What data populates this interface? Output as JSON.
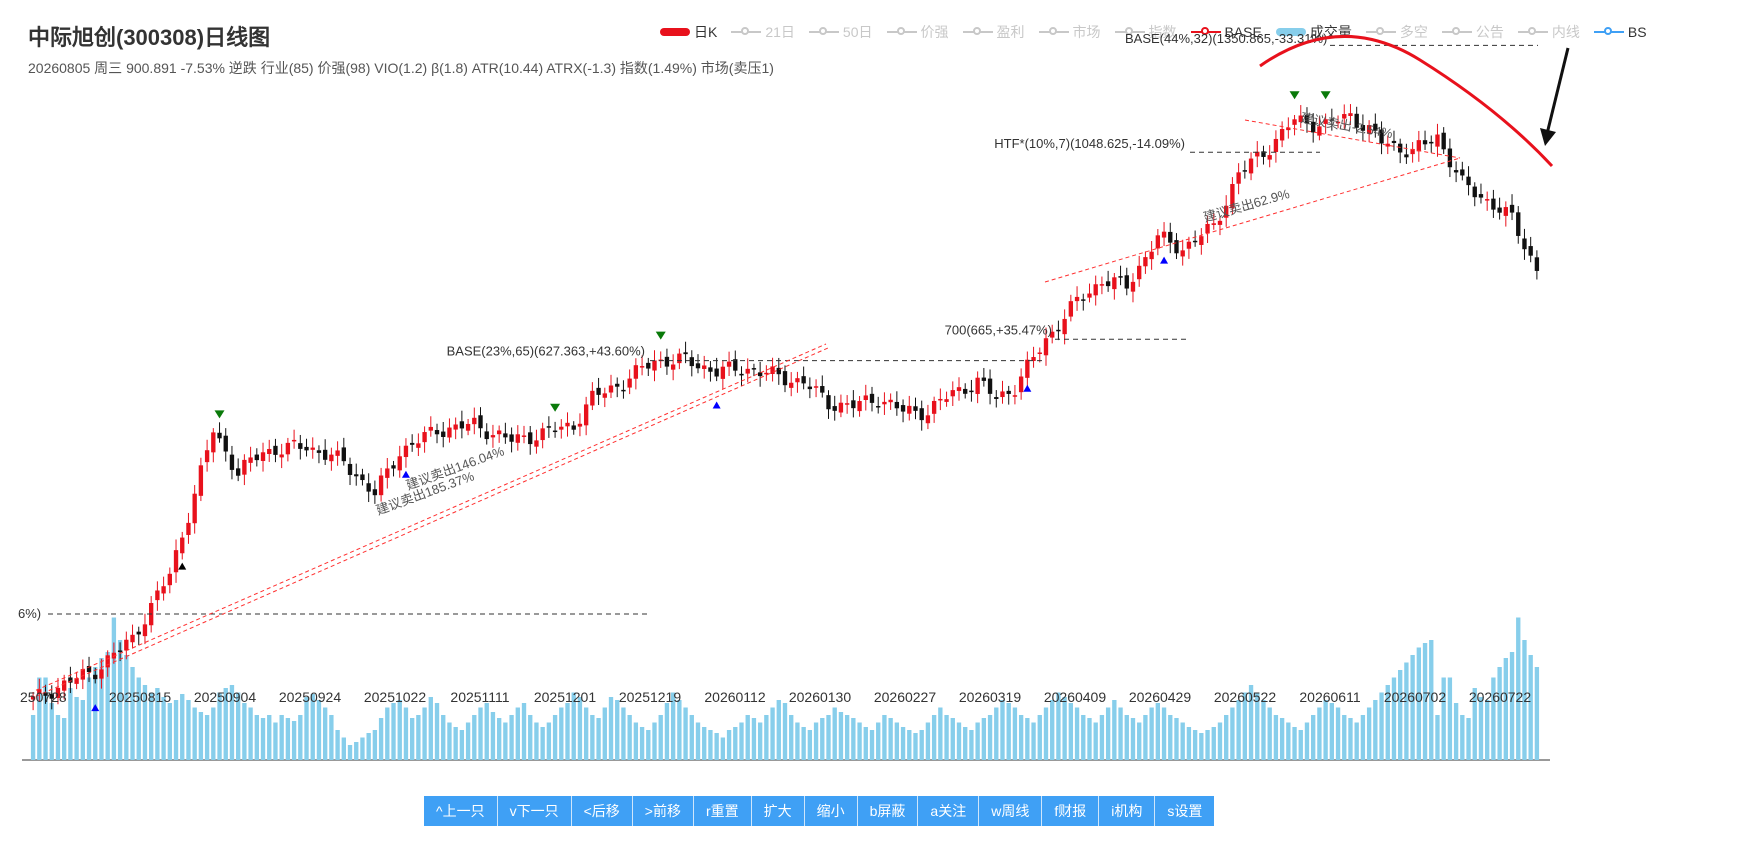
{
  "header": {
    "title": "中际旭创(300308)日线图",
    "subtitle": "20260805 周三 900.891 -7.53% 逆跌 行业(85) 价强(98) VIO(1.2) β(1.8) ATR(10.44) ATRX(-1.3) 指数(1.49%) 市场(卖压1)"
  },
  "legend": [
    {
      "label": "日K",
      "color": "#e8111c",
      "active": true,
      "kind": "bar"
    },
    {
      "label": "21日",
      "color": "#c8c8c8",
      "active": false,
      "kind": "line"
    },
    {
      "label": "50日",
      "color": "#c8c8c8",
      "active": false,
      "kind": "line"
    },
    {
      "label": "价强",
      "color": "#c8c8c8",
      "active": false,
      "kind": "line"
    },
    {
      "label": "盈利",
      "color": "#c8c8c8",
      "active": false,
      "kind": "line"
    },
    {
      "label": "市场",
      "color": "#c8c8c8",
      "active": false,
      "kind": "line"
    },
    {
      "label": "指数",
      "color": "#c8c8c8",
      "active": false,
      "kind": "line"
    },
    {
      "label": "BASE",
      "color": "#e8111c",
      "active": true,
      "kind": "line"
    },
    {
      "label": "成交量",
      "color": "#87ceeb",
      "active": true,
      "kind": "bar"
    },
    {
      "label": "多空",
      "color": "#c8c8c8",
      "active": false,
      "kind": "line"
    },
    {
      "label": "公告",
      "color": "#c8c8c8",
      "active": false,
      "kind": "line"
    },
    {
      "label": "内线",
      "color": "#c8c8c8",
      "active": false,
      "kind": "line"
    },
    {
      "label": "BS",
      "color": "#3fa0f5",
      "active": true,
      "kind": "line"
    }
  ],
  "toolbar": [
    {
      "label": "^上一只",
      "name": "prev-stock-button"
    },
    {
      "label": "v下一只",
      "name": "next-stock-button"
    },
    {
      "label": "<后移",
      "name": "shift-back-button"
    },
    {
      "label": ">前移",
      "name": "shift-forward-button"
    },
    {
      "label": "r重置",
      "name": "reset-button"
    },
    {
      "label": "扩大",
      "name": "expand-button"
    },
    {
      "label": "缩小",
      "name": "shrink-button"
    },
    {
      "label": "b屏蔽",
      "name": "block-button"
    },
    {
      "label": "a关注",
      "name": "follow-button"
    },
    {
      "label": "w周线",
      "name": "weekly-button"
    },
    {
      "label": "f财报",
      "name": "financials-button"
    },
    {
      "label": "i机构",
      "name": "institutions-button"
    },
    {
      "label": "s设置",
      "name": "settings-button"
    }
  ],
  "chart_data": {
    "type": "candlestick",
    "x_tick_labels": [
      "250728",
      "20250815",
      "20250904",
      "20250924",
      "20251022",
      "20251111",
      "20251201",
      "20251219",
      "20260112",
      "20260130",
      "20260227",
      "20260319",
      "20260409",
      "20260429",
      "20260522",
      "20260611",
      "20260702",
      "20260722"
    ],
    "price_range": [
      215,
      1450
    ],
    "colors": {
      "up": "#e8111c",
      "down": "#111111",
      "volume": "#87ceeb",
      "annotation_line": "#ff3030"
    },
    "close_anchors": [
      [
        0,
        215
      ],
      [
        5,
        245
      ],
      [
        10,
        270
      ],
      [
        16,
        330
      ],
      [
        22,
        450
      ],
      [
        26,
        600
      ],
      [
        29,
        720
      ],
      [
        33,
        640
      ],
      [
        37,
        680
      ],
      [
        44,
        690
      ],
      [
        50,
        660
      ],
      [
        55,
        600
      ],
      [
        59,
        680
      ],
      [
        65,
        720
      ],
      [
        71,
        730
      ],
      [
        77,
        700
      ],
      [
        84,
        720
      ],
      [
        87,
        730
      ],
      [
        90,
        780
      ],
      [
        95,
        810
      ],
      [
        100,
        850
      ],
      [
        105,
        850
      ],
      [
        110,
        830
      ],
      [
        115,
        835
      ],
      [
        120,
        820
      ],
      [
        124,
        810
      ],
      [
        128,
        770
      ],
      [
        132,
        765
      ],
      [
        136,
        780
      ],
      [
        140,
        755
      ],
      [
        144,
        755
      ],
      [
        148,
        790
      ],
      [
        152,
        810
      ],
      [
        155,
        780
      ],
      [
        158,
        800
      ],
      [
        163,
        890
      ],
      [
        168,
        960
      ],
      [
        172,
        1000
      ],
      [
        176,
        990
      ],
      [
        181,
        1080
      ],
      [
        185,
        1060
      ],
      [
        190,
        1100
      ],
      [
        194,
        1200
      ],
      [
        199,
        1250
      ],
      [
        203,
        1300
      ],
      [
        208,
        1290
      ],
      [
        212,
        1310
      ],
      [
        217,
        1260
      ],
      [
        222,
        1240
      ],
      [
        226,
        1270
      ],
      [
        230,
        1180
      ],
      [
        234,
        1150
      ],
      [
        238,
        1115
      ],
      [
        242,
        1020
      ]
    ],
    "volume_range": [
      0,
      100
    ],
    "volume_profile": [
      30,
      55,
      55,
      38,
      30,
      28,
      48,
      42,
      40,
      55,
      62,
      68,
      72,
      95,
      80,
      70,
      62,
      55,
      50,
      45,
      48,
      42,
      38,
      40,
      44,
      40,
      35,
      32,
      30,
      35,
      45,
      48,
      50,
      45,
      38,
      35,
      30,
      28,
      30,
      25,
      30,
      28,
      26,
      30,
      42,
      44,
      40,
      35,
      30,
      20,
      15,
      10,
      12,
      15,
      18,
      20,
      28,
      35,
      38,
      40,
      35,
      28,
      30,
      35,
      42,
      38,
      30,
      25,
      22,
      20,
      25,
      30,
      35,
      38,
      32,
      28,
      25,
      30,
      35,
      38,
      30,
      25,
      22,
      25,
      30,
      35,
      38,
      45,
      42,
      35,
      30,
      28,
      35,
      42,
      40,
      35,
      30,
      25,
      22,
      20,
      25,
      30,
      38,
      45,
      40,
      35,
      30,
      25,
      22,
      20,
      18,
      15,
      20,
      22,
      25,
      30,
      28,
      25,
      30,
      35,
      40,
      38,
      30,
      25,
      22,
      20,
      25,
      28,
      30,
      35,
      32,
      30,
      28,
      25,
      22,
      20,
      25,
      30,
      28,
      25,
      22,
      20,
      18,
      20,
      25,
      30,
      35,
      30,
      28,
      25,
      22,
      20,
      25,
      28,
      30,
      35,
      40,
      38,
      35,
      30,
      28,
      25,
      30,
      35,
      40,
      45,
      42,
      38,
      35,
      30,
      28,
      25,
      30,
      35,
      40,
      35,
      30,
      28,
      25,
      30,
      35,
      38,
      35,
      30,
      28,
      25,
      22,
      20,
      18,
      20,
      22,
      25,
      30,
      35,
      40,
      45,
      50,
      45,
      40,
      35,
      30,
      28,
      25,
      22,
      20,
      25,
      30,
      35,
      40,
      38,
      35,
      30,
      28,
      25,
      30,
      35,
      40,
      45,
      50,
      55,
      60,
      65,
      70,
      75,
      78,
      80
    ],
    "annotations": [
      {
        "text": "BASE(23%,65)(627.363,+43.60%)"
      },
      {
        "text": "700(665,+35.47%)"
      },
      {
        "text": "HTF*(10%,7)(1048.625,-14.09%)"
      },
      {
        "text": "BASE(44%,32)(1350.865,-33.31%)"
      },
      {
        "text": "6%)"
      },
      {
        "text": "建议卖出146.04%"
      },
      {
        "text": "建议卖出185.37%"
      },
      {
        "text": "建议卖出62.9%"
      },
      {
        "text": "建议卖出-2.54%"
      }
    ]
  }
}
